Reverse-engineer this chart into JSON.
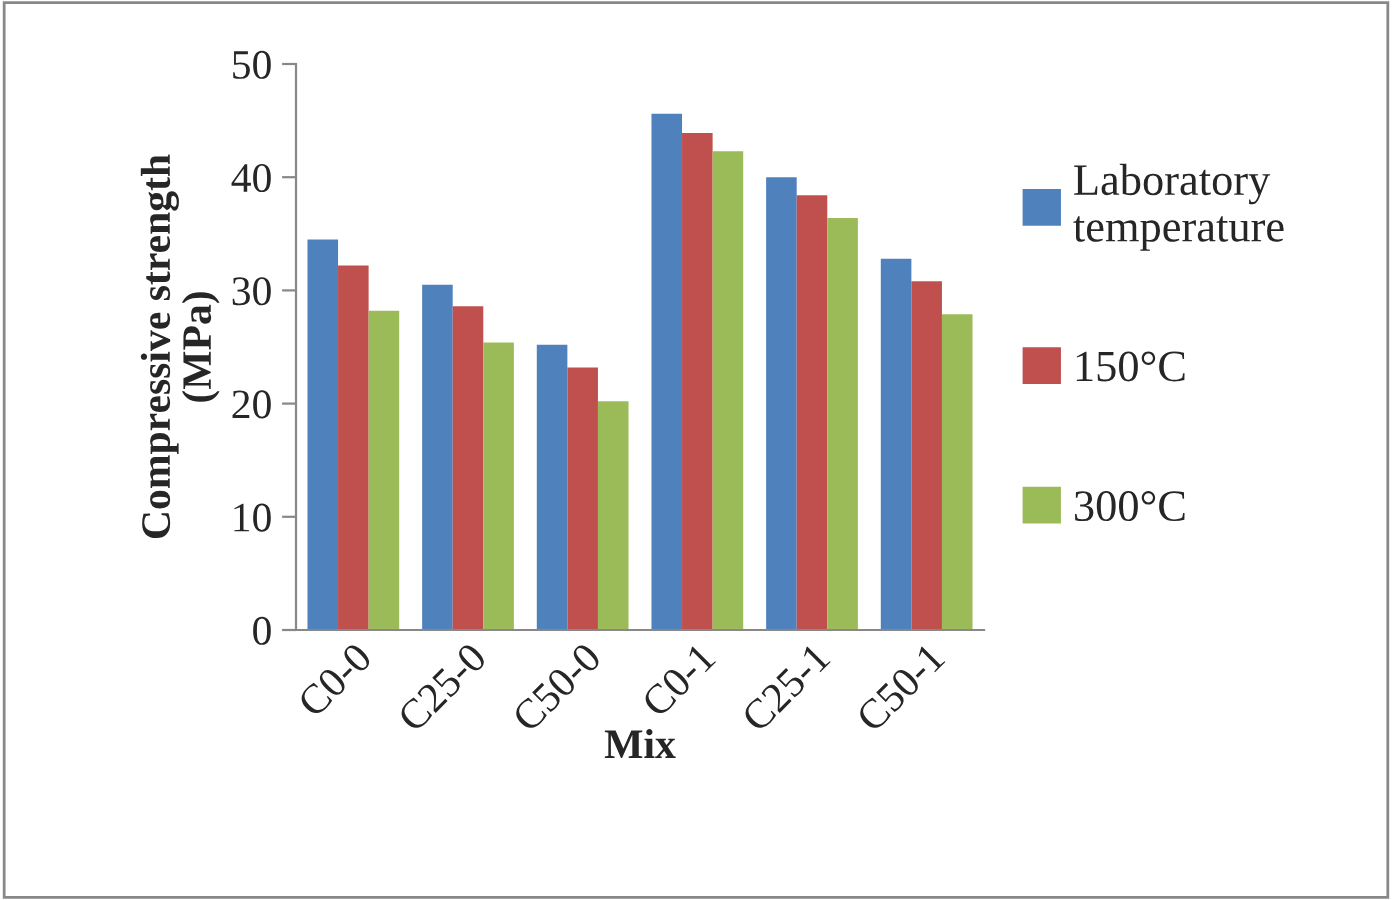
{
  "chart_data": {
    "type": "bar",
    "xlabel": "Mix",
    "ylabel": "Compressive strength\n(MPa)",
    "categories": [
      "C0-0",
      "C25-0",
      "C50-0",
      "C0-1",
      "C25-1",
      "C50-1"
    ],
    "series": [
      {
        "name": "Laboratory\ntemperature",
        "color": "#4f81bd",
        "values": [
          34.5,
          30.5,
          25.2,
          45.6,
          40.0,
          32.8
        ]
      },
      {
        "name": "150°C",
        "color": "#c0504d",
        "values": [
          32.2,
          28.6,
          23.2,
          43.9,
          38.4,
          30.8
        ]
      },
      {
        "name": "300°C",
        "color": "#9bbb59",
        "values": [
          28.2,
          25.4,
          20.2,
          42.3,
          36.4,
          27.9
        ]
      }
    ],
    "ylim": [
      0,
      50
    ],
    "yticks": [
      0,
      10,
      20,
      30,
      40,
      50
    ],
    "grid": false,
    "legend": "right"
  }
}
